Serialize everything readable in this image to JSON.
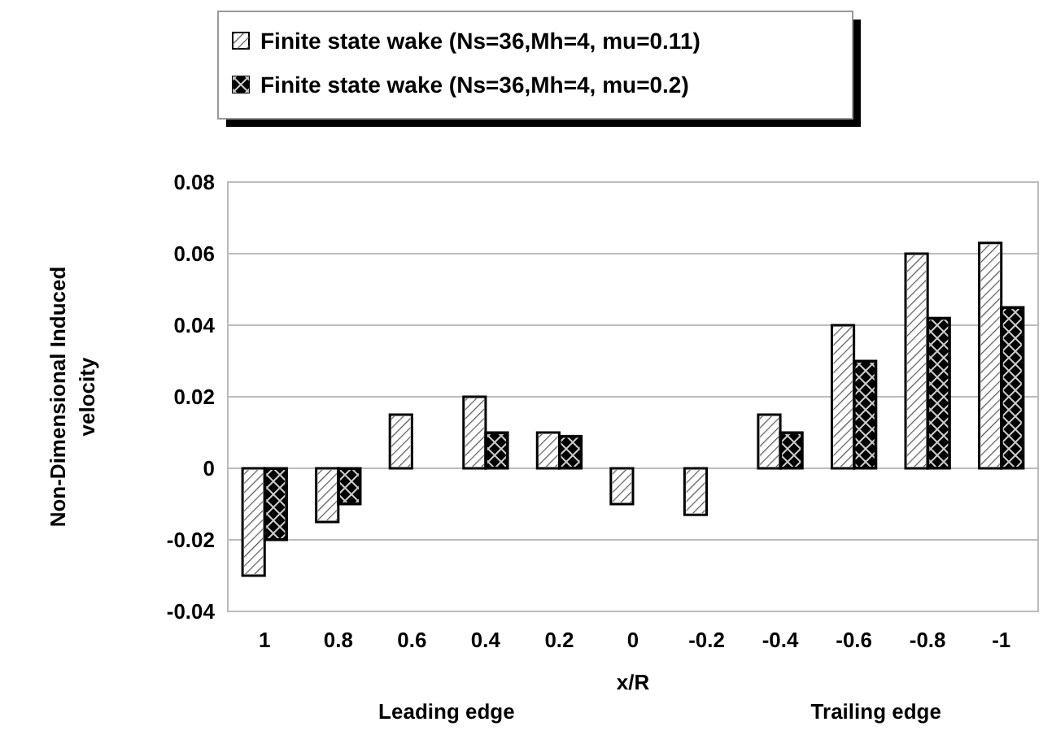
{
  "chart_data": {
    "type": "bar",
    "xlabel": "x/R",
    "ylabel": "Non-Dimensional Induced velocity",
    "categories": [
      "1",
      "0.8",
      "0.6",
      "0.4",
      "0.2",
      "0",
      "-0.2",
      "-0.4",
      "-0.6",
      "-0.8",
      "-1"
    ],
    "series": [
      {
        "name": "Finite state wake (Ns=36,Mh=4, mu=0.11)",
        "color": "#ffffff",
        "values": [
          -0.03,
          -0.015,
          0.015,
          0.02,
          0.01,
          -0.01,
          -0.013,
          0.015,
          0.04,
          0.06,
          0.063
        ]
      },
      {
        "name": "Finite state wake (Ns=36,Mh=4, mu=0.2)",
        "color": "#000000",
        "values": [
          -0.02,
          -0.01,
          0,
          0.01,
          0.009,
          0,
          0,
          0.01,
          0.03,
          0.042,
          0.045
        ]
      }
    ],
    "ylim": [
      -0.04,
      0.08
    ],
    "yticks": [
      {
        "value": -0.04,
        "label": "-0.04"
      },
      {
        "value": -0.02,
        "label": "-0.02"
      },
      {
        "value": 0,
        "label": "0"
      },
      {
        "value": 0.02,
        "label": "0.02"
      },
      {
        "value": 0.04,
        "label": "0.04"
      },
      {
        "value": 0.06,
        "label": "0.06"
      },
      {
        "value": 0.08,
        "label": "0.08"
      }
    ],
    "grid": "y",
    "legend": "top",
    "annotations": [
      "Leading edge",
      "Trailing edge"
    ]
  }
}
